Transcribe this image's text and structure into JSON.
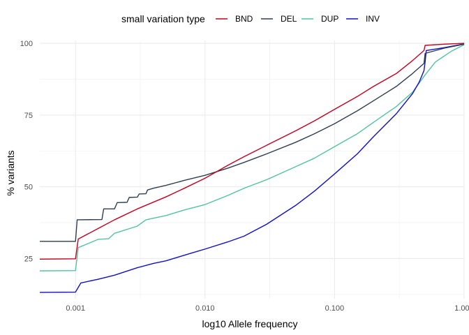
{
  "chart_data": {
    "type": "line",
    "title": "",
    "xlabel": "log10 Allele frequency",
    "ylabel": "% variants",
    "x_scale": "log10",
    "xlim": [
      0.00053,
      1.0
    ],
    "ylim": [
      11,
      101
    ],
    "x_ticks": [
      0.001,
      0.01,
      0.1,
      1.0
    ],
    "x_tick_labels": [
      "0.001",
      "0.010",
      "0.100",
      "1.000"
    ],
    "y_ticks": [
      25,
      50,
      75,
      100
    ],
    "y_tick_labels": [
      "25",
      "50",
      "75",
      "100"
    ],
    "grid": true,
    "legend": {
      "title": "small variation type",
      "placement": "top"
    },
    "series": [
      {
        "name": "BND",
        "color": "#c4001e",
        "points": [
          [
            0.00053,
            24.8
          ],
          [
            0.001,
            24.9
          ],
          [
            0.00105,
            31.8
          ],
          [
            0.0015,
            35.5
          ],
          [
            0.002,
            38.5
          ],
          [
            0.003,
            42.3
          ],
          [
            0.005,
            46.5
          ],
          [
            0.007,
            49.6
          ],
          [
            0.01,
            53.0
          ],
          [
            0.015,
            57.5
          ],
          [
            0.02,
            60.5
          ],
          [
            0.03,
            64.5
          ],
          [
            0.05,
            69.5
          ],
          [
            0.07,
            73.0
          ],
          [
            0.1,
            77.0
          ],
          [
            0.15,
            81.5
          ],
          [
            0.2,
            85.0
          ],
          [
            0.3,
            89.5
          ],
          [
            0.4,
            94.0
          ],
          [
            0.49,
            97.5
          ],
          [
            0.5,
            99.3
          ],
          [
            0.7,
            99.7
          ],
          [
            1.0,
            100.0
          ]
        ]
      },
      {
        "name": "DEL",
        "color": "#2d3e50",
        "points": [
          [
            0.00053,
            31.0
          ],
          [
            0.001,
            31.0
          ],
          [
            0.00103,
            38.5
          ],
          [
            0.0016,
            38.6
          ],
          [
            0.00165,
            42.3
          ],
          [
            0.002,
            42.3
          ],
          [
            0.0021,
            44.5
          ],
          [
            0.0025,
            44.6
          ],
          [
            0.0026,
            46.3
          ],
          [
            0.003,
            46.4
          ],
          [
            0.0031,
            47.5
          ],
          [
            0.0035,
            47.6
          ],
          [
            0.0036,
            48.9
          ],
          [
            0.004,
            49.5
          ],
          [
            0.005,
            50.5
          ],
          [
            0.007,
            52.3
          ],
          [
            0.01,
            54.0
          ],
          [
            0.015,
            56.5
          ],
          [
            0.02,
            58.5
          ],
          [
            0.03,
            61.5
          ],
          [
            0.05,
            65.5
          ],
          [
            0.07,
            68.5
          ],
          [
            0.1,
            72.0
          ],
          [
            0.15,
            76.5
          ],
          [
            0.2,
            80.0
          ],
          [
            0.3,
            85.0
          ],
          [
            0.4,
            89.5
          ],
          [
            0.49,
            93.0
          ],
          [
            0.5,
            96.5
          ],
          [
            0.7,
            98.3
          ],
          [
            1.0,
            99.7
          ]
        ]
      },
      {
        "name": "DUP",
        "color": "#52c2a0",
        "points": [
          [
            0.00053,
            20.7
          ],
          [
            0.001,
            20.8
          ],
          [
            0.00105,
            28.8
          ],
          [
            0.0015,
            31.7
          ],
          [
            0.0018,
            31.9
          ],
          [
            0.002,
            33.8
          ],
          [
            0.003,
            36.3
          ],
          [
            0.0035,
            38.5
          ],
          [
            0.005,
            40.0
          ],
          [
            0.007,
            42.0
          ],
          [
            0.01,
            43.8
          ],
          [
            0.015,
            47.0
          ],
          [
            0.02,
            49.5
          ],
          [
            0.03,
            52.5
          ],
          [
            0.05,
            57.0
          ],
          [
            0.07,
            60.0
          ],
          [
            0.1,
            64.0
          ],
          [
            0.15,
            68.5
          ],
          [
            0.2,
            72.5
          ],
          [
            0.3,
            78.0
          ],
          [
            0.4,
            83.0
          ],
          [
            0.5,
            89.0
          ],
          [
            0.6,
            93.5
          ],
          [
            0.8,
            97.3
          ],
          [
            1.0,
            99.5
          ]
        ]
      },
      {
        "name": "INV",
        "color": "#1010c6",
        "points": [
          [
            0.00053,
            13.2
          ],
          [
            0.001,
            13.3
          ],
          [
            0.0011,
            16.5
          ],
          [
            0.0015,
            17.8
          ],
          [
            0.002,
            19.2
          ],
          [
            0.003,
            21.8
          ],
          [
            0.004,
            23.3
          ],
          [
            0.005,
            24.2
          ],
          [
            0.006,
            25.3
          ],
          [
            0.008,
            27.0
          ],
          [
            0.01,
            28.3
          ],
          [
            0.015,
            30.8
          ],
          [
            0.02,
            32.8
          ],
          [
            0.03,
            37.0
          ],
          [
            0.05,
            43.5
          ],
          [
            0.07,
            48.5
          ],
          [
            0.1,
            54.5
          ],
          [
            0.15,
            61.5
          ],
          [
            0.2,
            67.5
          ],
          [
            0.3,
            75.5
          ],
          [
            0.4,
            82.5
          ],
          [
            0.45,
            86.5
          ],
          [
            0.49,
            90.5
          ],
          [
            0.5,
            93.5
          ],
          [
            0.51,
            97.5
          ],
          [
            0.7,
            98.5
          ],
          [
            1.0,
            99.8
          ]
        ]
      }
    ]
  }
}
